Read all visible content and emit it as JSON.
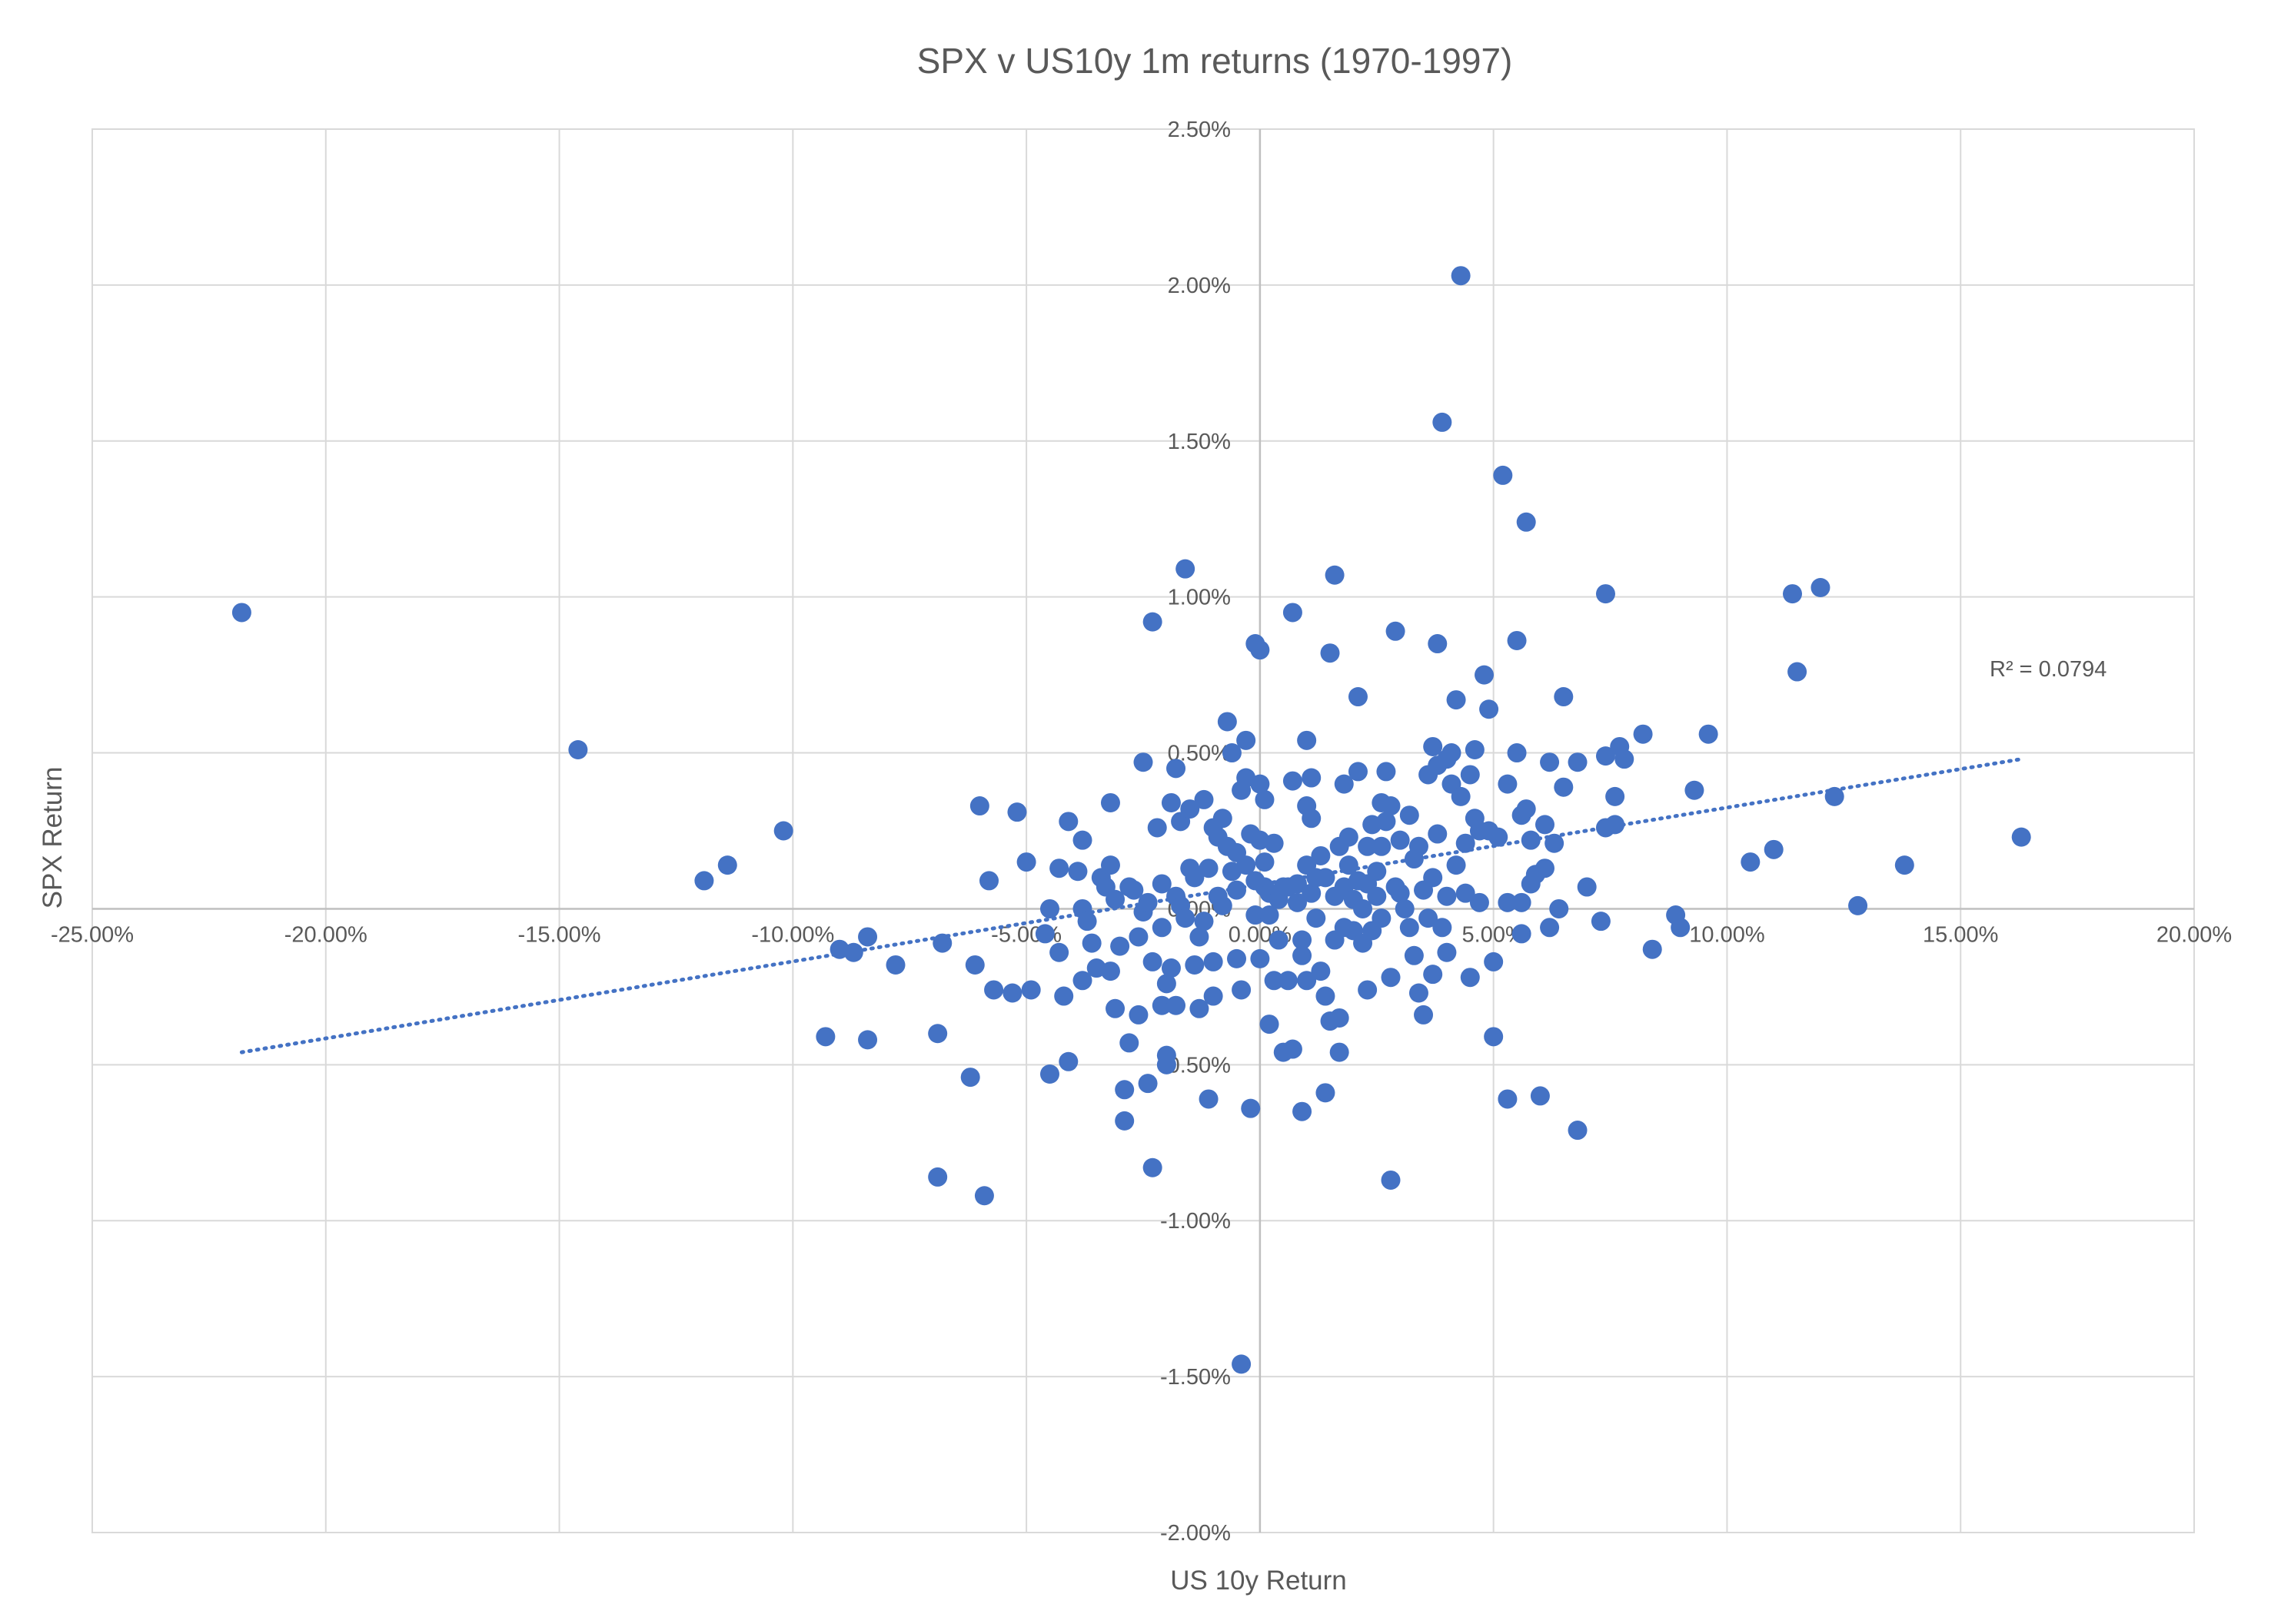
{
  "chart_data": {
    "type": "scatter",
    "title": "SPX v US10y 1m returns (1970-1997)",
    "xlabel": "US 10y Return",
    "ylabel": "SPX Return",
    "xlim": [
      -25,
      20
    ],
    "ylim": [
      -2.0,
      2.5
    ],
    "x_ticks": [
      -25,
      -20,
      -15,
      -10,
      -5,
      0,
      5,
      10,
      15,
      20
    ],
    "x_tick_labels": [
      "-25.00%",
      "-20.00%",
      "-15.00%",
      "-10.00%",
      "-5.00%",
      "0.00%",
      "5.00%",
      "10.00%",
      "15.00%",
      "20.00%"
    ],
    "y_ticks": [
      2.5,
      2.0,
      1.5,
      1.0,
      0.5,
      0.0,
      -0.5,
      -1.0,
      -1.5,
      -2.0
    ],
    "y_tick_labels": [
      "2.50%",
      "2.00%",
      "1.50%",
      "1.00%",
      "0.50%",
      "0.00%",
      "-0.50%",
      "-1.00%",
      "-1.50%",
      "-2.00%"
    ],
    "grid": true,
    "marker_color": "#4472c4",
    "trendline": {
      "type": "linear",
      "x_range": [
        -21.8,
        16.3
      ],
      "y_at_start": -0.46,
      "y_at_end": 0.48,
      "r2_label": "R² = 0.0794"
    },
    "points": [
      [
        -21.8,
        0.95
      ],
      [
        -14.6,
        0.51
      ],
      [
        -11.9,
        0.09
      ],
      [
        -11.4,
        0.14
      ],
      [
        -10.2,
        0.25
      ],
      [
        -9.3,
        -0.41
      ],
      [
        -9.0,
        -0.13
      ],
      [
        -8.7,
        -0.14
      ],
      [
        -8.4,
        -0.42
      ],
      [
        -8.4,
        -0.09
      ],
      [
        -7.8,
        -0.18
      ],
      [
        -6.9,
        -0.4
      ],
      [
        -6.9,
        -0.86
      ],
      [
        -6.8,
        -0.11
      ],
      [
        -6.2,
        -0.54
      ],
      [
        -6.1,
        -0.18
      ],
      [
        -6.0,
        0.33
      ],
      [
        -5.9,
        -0.92
      ],
      [
        -5.8,
        0.09
      ],
      [
        -5.7,
        -0.26
      ],
      [
        -5.3,
        -0.27
      ],
      [
        -5.2,
        0.31
      ],
      [
        -5.0,
        0.15
      ],
      [
        -4.9,
        -0.26
      ],
      [
        -4.6,
        -0.08
      ],
      [
        -4.5,
        -0.53
      ],
      [
        -4.5,
        0.0
      ],
      [
        -4.3,
        -0.14
      ],
      [
        -4.2,
        -0.28
      ],
      [
        -4.3,
        0.13
      ],
      [
        -4.1,
        -0.49
      ],
      [
        -4.1,
        0.28
      ],
      [
        -3.9,
        0.12
      ],
      [
        -3.8,
        0.0
      ],
      [
        -3.8,
        -0.23
      ],
      [
        -3.7,
        -0.04
      ],
      [
        -3.6,
        -0.11
      ],
      [
        -3.5,
        -0.19
      ],
      [
        -3.8,
        0.22
      ],
      [
        -3.4,
        0.1
      ],
      [
        -3.3,
        0.07
      ],
      [
        -3.2,
        0.34
      ],
      [
        -3.2,
        0.14
      ],
      [
        -3.1,
        0.03
      ],
      [
        -3.1,
        -0.32
      ],
      [
        -3.2,
        -0.2
      ],
      [
        -3.0,
        -0.12
      ],
      [
        -2.9,
        -0.58
      ],
      [
        -2.9,
        -0.68
      ],
      [
        -2.8,
        -0.43
      ],
      [
        -2.8,
        0.07
      ],
      [
        -2.7,
        0.06
      ],
      [
        -2.6,
        -0.34
      ],
      [
        -2.6,
        -0.09
      ],
      [
        -2.5,
        -0.01
      ],
      [
        -2.4,
        0.02
      ],
      [
        -2.5,
        0.47
      ],
      [
        -2.4,
        -0.56
      ],
      [
        -2.3,
        -0.17
      ],
      [
        -2.3,
        -0.83
      ],
      [
        -2.3,
        0.92
      ],
      [
        -2.2,
        0.26
      ],
      [
        -2.1,
        -0.31
      ],
      [
        -2.1,
        -0.06
      ],
      [
        -2.1,
        0.08
      ],
      [
        -2.0,
        -0.47
      ],
      [
        -2.0,
        -0.24
      ],
      [
        -2.0,
        -0.5
      ],
      [
        -1.9,
        0.34
      ],
      [
        -1.9,
        -0.19
      ],
      [
        -1.8,
        0.45
      ],
      [
        -1.8,
        -0.31
      ],
      [
        -1.8,
        0.04
      ],
      [
        -1.7,
        0.28
      ],
      [
        -1.7,
        0.01
      ],
      [
        -1.6,
        1.09
      ],
      [
        -1.6,
        -0.03
      ],
      [
        -1.5,
        0.32
      ],
      [
        -1.5,
        0.13
      ],
      [
        -1.4,
        0.1
      ],
      [
        -1.4,
        -0.18
      ],
      [
        -1.3,
        -0.32
      ],
      [
        -1.3,
        -0.09
      ],
      [
        -1.2,
        0.35
      ],
      [
        -1.2,
        -0.04
      ],
      [
        -1.1,
        -0.61
      ],
      [
        -1.1,
        0.13
      ],
      [
        -1.0,
        0.26
      ],
      [
        -1.0,
        -0.28
      ],
      [
        -1.0,
        -0.17
      ],
      [
        -0.9,
        0.23
      ],
      [
        -0.9,
        0.04
      ],
      [
        -0.8,
        0.01
      ],
      [
        -0.8,
        0.29
      ],
      [
        -0.7,
        0.6
      ],
      [
        -0.7,
        0.2
      ],
      [
        -0.6,
        0.12
      ],
      [
        -0.6,
        0.5
      ],
      [
        -0.5,
        0.06
      ],
      [
        -0.5,
        0.18
      ],
      [
        -0.5,
        -0.16
      ],
      [
        -0.4,
        -0.26
      ],
      [
        -0.4,
        0.38
      ],
      [
        -0.4,
        -1.46
      ],
      [
        -0.3,
        0.54
      ],
      [
        -0.3,
        0.14
      ],
      [
        -0.3,
        0.42
      ],
      [
        -0.2,
        0.24
      ],
      [
        -0.2,
        -0.64
      ],
      [
        -0.1,
        0.85
      ],
      [
        -0.1,
        0.09
      ],
      [
        -0.1,
        -0.02
      ],
      [
        0.0,
        0.83
      ],
      [
        0.0,
        0.4
      ],
      [
        0.0,
        0.22
      ],
      [
        0.0,
        -0.16
      ],
      [
        0.1,
        0.35
      ],
      [
        0.1,
        0.15
      ],
      [
        0.1,
        0.07
      ],
      [
        0.2,
        -0.37
      ],
      [
        0.2,
        0.05
      ],
      [
        0.2,
        -0.02
      ],
      [
        0.3,
        -0.23
      ],
      [
        0.3,
        0.21
      ],
      [
        0.4,
        0.03
      ],
      [
        0.4,
        -0.1
      ],
      [
        0.5,
        0.07
      ],
      [
        0.5,
        -0.46
      ],
      [
        0.6,
        0.07
      ],
      [
        0.6,
        -0.23
      ],
      [
        0.7,
        0.41
      ],
      [
        0.7,
        0.95
      ],
      [
        0.7,
        -0.45
      ],
      [
        0.8,
        0.08
      ],
      [
        0.8,
        0.02
      ],
      [
        0.9,
        -0.15
      ],
      [
        0.9,
        -0.65
      ],
      [
        0.9,
        -0.1
      ],
      [
        1.0,
        0.14
      ],
      [
        1.0,
        0.33
      ],
      [
        1.0,
        0.54
      ],
      [
        1.0,
        -0.23
      ],
      [
        1.1,
        0.29
      ],
      [
        1.1,
        0.05
      ],
      [
        1.1,
        0.42
      ],
      [
        1.2,
        0.1
      ],
      [
        1.2,
        -0.03
      ],
      [
        1.3,
        -0.2
      ],
      [
        1.3,
        0.17
      ],
      [
        1.4,
        0.1
      ],
      [
        1.4,
        -0.28
      ],
      [
        1.4,
        -0.59
      ],
      [
        1.5,
        0.82
      ],
      [
        1.5,
        -0.36
      ],
      [
        1.6,
        0.04
      ],
      [
        1.6,
        -0.1
      ],
      [
        1.6,
        1.07
      ],
      [
        1.7,
        -0.35
      ],
      [
        1.7,
        -0.46
      ],
      [
        1.7,
        0.2
      ],
      [
        1.8,
        0.07
      ],
      [
        1.8,
        0.4
      ],
      [
        1.8,
        -0.06
      ],
      [
        1.9,
        0.14
      ],
      [
        1.9,
        0.23
      ],
      [
        2.0,
        0.03
      ],
      [
        2.0,
        -0.07
      ],
      [
        2.1,
        0.68
      ],
      [
        2.1,
        0.44
      ],
      [
        2.1,
        0.09
      ],
      [
        2.2,
        0.0
      ],
      [
        2.2,
        -0.11
      ],
      [
        2.3,
        0.2
      ],
      [
        2.3,
        0.08
      ],
      [
        2.3,
        -0.26
      ],
      [
        2.4,
        -0.07
      ],
      [
        2.4,
        0.27
      ],
      [
        2.5,
        0.04
      ],
      [
        2.5,
        0.12
      ],
      [
        2.6,
        0.34
      ],
      [
        2.6,
        0.2
      ],
      [
        2.6,
        -0.03
      ],
      [
        2.7,
        0.44
      ],
      [
        2.7,
        0.28
      ],
      [
        2.8,
        -0.22
      ],
      [
        2.8,
        -0.87
      ],
      [
        2.8,
        0.33
      ],
      [
        2.9,
        0.89
      ],
      [
        2.9,
        0.07
      ],
      [
        3.0,
        0.05
      ],
      [
        3.0,
        0.22
      ],
      [
        3.1,
        0.0
      ],
      [
        3.2,
        -0.06
      ],
      [
        3.2,
        0.3
      ],
      [
        3.3,
        0.16
      ],
      [
        3.3,
        -0.15
      ],
      [
        3.4,
        0.2
      ],
      [
        3.4,
        -0.27
      ],
      [
        3.5,
        0.06
      ],
      [
        3.5,
        -0.34
      ],
      [
        3.6,
        0.43
      ],
      [
        3.6,
        -0.03
      ],
      [
        3.7,
        0.52
      ],
      [
        3.7,
        -0.21
      ],
      [
        3.7,
        0.1
      ],
      [
        3.8,
        0.85
      ],
      [
        3.8,
        0.46
      ],
      [
        3.8,
        0.24
      ],
      [
        3.9,
        1.56
      ],
      [
        3.9,
        -0.06
      ],
      [
        4.0,
        0.48
      ],
      [
        4.0,
        0.04
      ],
      [
        4.0,
        -0.14
      ],
      [
        4.1,
        0.5
      ],
      [
        4.1,
        0.4
      ],
      [
        4.2,
        0.67
      ],
      [
        4.2,
        0.14
      ],
      [
        4.3,
        2.03
      ],
      [
        4.3,
        0.36
      ],
      [
        4.4,
        0.05
      ],
      [
        4.4,
        0.21
      ],
      [
        4.5,
        0.43
      ],
      [
        4.5,
        -0.22
      ],
      [
        4.6,
        0.51
      ],
      [
        4.6,
        0.29
      ],
      [
        4.7,
        0.25
      ],
      [
        4.7,
        0.02
      ],
      [
        4.8,
        0.75
      ],
      [
        4.9,
        0.64
      ],
      [
        4.9,
        0.25
      ],
      [
        5.0,
        -0.41
      ],
      [
        5.0,
        -0.17
      ],
      [
        5.1,
        0.23
      ],
      [
        5.2,
        1.39
      ],
      [
        5.3,
        0.4
      ],
      [
        5.3,
        0.02
      ],
      [
        5.3,
        -0.61
      ],
      [
        5.5,
        0.5
      ],
      [
        5.5,
        0.86
      ],
      [
        5.6,
        0.3
      ],
      [
        5.6,
        -0.08
      ],
      [
        5.6,
        0.02
      ],
      [
        5.7,
        1.24
      ],
      [
        5.7,
        0.32
      ],
      [
        5.8,
        0.22
      ],
      [
        5.8,
        0.08
      ],
      [
        5.9,
        0.11
      ],
      [
        6.0,
        -0.6
      ],
      [
        6.1,
        0.27
      ],
      [
        6.1,
        0.13
      ],
      [
        6.2,
        -0.06
      ],
      [
        6.2,
        0.47
      ],
      [
        6.3,
        0.21
      ],
      [
        6.4,
        0.0
      ],
      [
        6.5,
        0.68
      ],
      [
        6.5,
        0.39
      ],
      [
        6.8,
        0.47
      ],
      [
        6.8,
        -0.71
      ],
      [
        7.0,
        0.07
      ],
      [
        7.3,
        -0.04
      ],
      [
        7.4,
        0.49
      ],
      [
        7.4,
        1.01
      ],
      [
        7.4,
        0.26
      ],
      [
        7.6,
        0.27
      ],
      [
        7.6,
        0.36
      ],
      [
        7.7,
        0.52
      ],
      [
        7.8,
        0.48
      ],
      [
        8.2,
        0.56
      ],
      [
        8.4,
        -0.13
      ],
      [
        8.9,
        -0.02
      ],
      [
        9.0,
        -0.06
      ],
      [
        9.3,
        0.38
      ],
      [
        9.6,
        0.56
      ],
      [
        10.5,
        0.15
      ],
      [
        11.0,
        0.19
      ],
      [
        11.4,
        1.01
      ],
      [
        11.5,
        0.76
      ],
      [
        12.0,
        1.03
      ],
      [
        12.3,
        0.36
      ],
      [
        12.8,
        0.01
      ],
      [
        13.8,
        0.14
      ],
      [
        16.3,
        0.23
      ]
    ]
  }
}
